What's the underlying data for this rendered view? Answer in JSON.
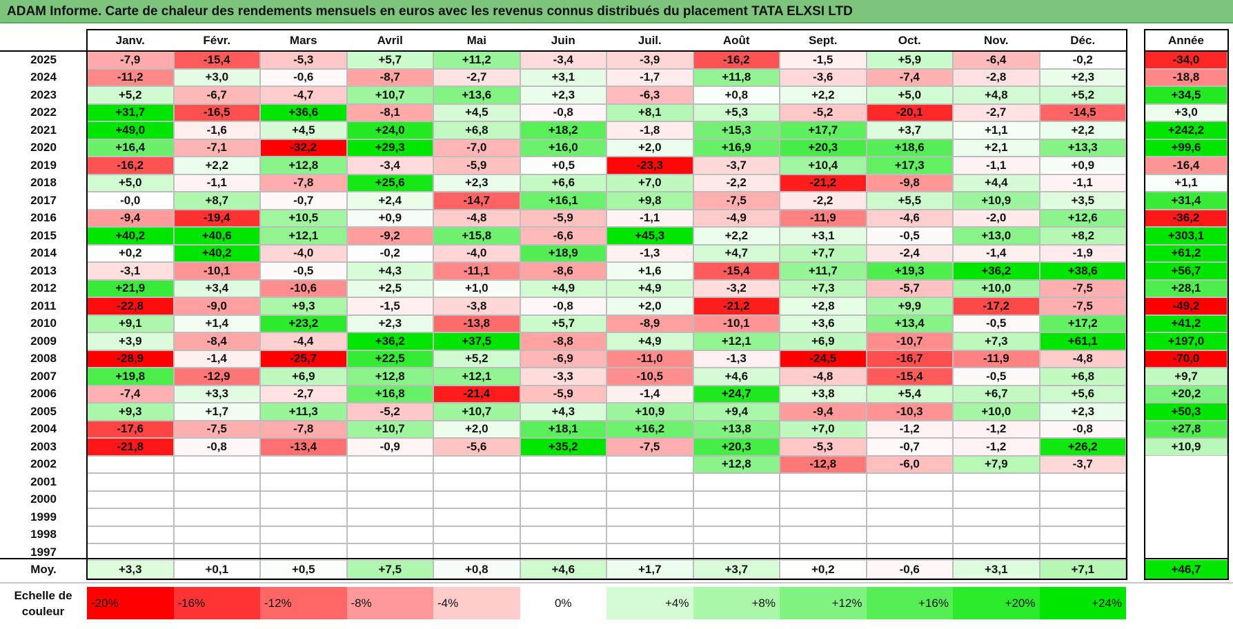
{
  "title": "ADAM Informe. Carte de chaleur des rendements mensuels en euros avec les revenus connus distribués du placement TATA ELXSI LTD",
  "chart_data": {
    "type": "heatmap",
    "title": "ADAM Informe. Carte de chaleur des rendements mensuels en euros avec les revenus connus distribués du placement TATA ELXSI LTD",
    "columns": [
      "Janv.",
      "Févr.",
      "Mars",
      "Avril",
      "Mai",
      "Juin",
      "Juil.",
      "Août",
      "Sept.",
      "Oct.",
      "Nov.",
      "Déc."
    ],
    "year_header": "Année",
    "rows": [
      {
        "year": "2025",
        "values": [
          "-7,9",
          "-15,4",
          "-5,3",
          "+5,7",
          "+11,2",
          "-3,4",
          "-3,9",
          "-16,2",
          "-1,5",
          "+5,9",
          "-6,4",
          "-0,2"
        ],
        "annual": "-34,0"
      },
      {
        "year": "2024",
        "values": [
          "-11,2",
          "+3,0",
          "-0,6",
          "-8,7",
          "-2,7",
          "+3,1",
          "-1,7",
          "+11,8",
          "-3,6",
          "-7,4",
          "-2,8",
          "+2,3"
        ],
        "annual": "-18,8"
      },
      {
        "year": "2023",
        "values": [
          "+5,2",
          "-6,7",
          "-4,7",
          "+10,7",
          "+13,6",
          "+2,3",
          "-6,3",
          "+0,8",
          "+2,2",
          "+5,0",
          "+4,8",
          "+5,2"
        ],
        "annual": "+34,5"
      },
      {
        "year": "2022",
        "values": [
          "+31,7",
          "-16,5",
          "+36,6",
          "-8,1",
          "+4,5",
          "-0,8",
          "+8,1",
          "+5,3",
          "-5,2",
          "-20,1",
          "-2,7",
          "-14,5"
        ],
        "annual": "+3,0"
      },
      {
        "year": "2021",
        "values": [
          "+49,0",
          "-1,6",
          "+4,5",
          "+24,0",
          "+6,8",
          "+18,2",
          "-1,8",
          "+15,3",
          "+17,7",
          "+3,7",
          "+1,1",
          "+2,2"
        ],
        "annual": "+242,2"
      },
      {
        "year": "2020",
        "values": [
          "+16,4",
          "-7,1",
          "-32,2",
          "+29,3",
          "-7,0",
          "+16,0",
          "+2,0",
          "+16,9",
          "+20,3",
          "+18,6",
          "+2,1",
          "+13,3"
        ],
        "annual": "+99,6"
      },
      {
        "year": "2019",
        "values": [
          "-16,2",
          "+2,2",
          "+12,8",
          "-3,4",
          "-5,9",
          "+0,5",
          "-23,3",
          "-3,7",
          "+10,4",
          "+17,3",
          "-1,1",
          "+0,9"
        ],
        "annual": "-16,4"
      },
      {
        "year": "2018",
        "values": [
          "+5,0",
          "-1,1",
          "-7,8",
          "+25,6",
          "+2,3",
          "+6,6",
          "+7,0",
          "-2,2",
          "-21,2",
          "-9,8",
          "+4,4",
          "-1,1"
        ],
        "annual": "+1,1"
      },
      {
        "year": "2017",
        "values": [
          "-0,0",
          "+8,7",
          "-0,7",
          "+2,4",
          "-14,7",
          "+16,1",
          "+9,8",
          "-7,5",
          "-2,2",
          "+5,5",
          "+10,9",
          "+3,5"
        ],
        "annual": "+31,4"
      },
      {
        "year": "2016",
        "values": [
          "-9,4",
          "-19,4",
          "+10,5",
          "+0,9",
          "-4,8",
          "-5,9",
          "-1,1",
          "-4,9",
          "-11,9",
          "-4,6",
          "-2,0",
          "+12,6"
        ],
        "annual": "-36,2"
      },
      {
        "year": "2015",
        "values": [
          "+40,2",
          "+40,6",
          "+12,1",
          "-9,2",
          "+15,8",
          "-6,6",
          "+45,3",
          "+2,2",
          "+3,1",
          "-0,5",
          "+13,0",
          "+8,2"
        ],
        "annual": "+303,1"
      },
      {
        "year": "2014",
        "values": [
          "+0,2",
          "+40,2",
          "-4,0",
          "-0,2",
          "-4,0",
          "+18,9",
          "-1,3",
          "+4,7",
          "+7,7",
          "-2,4",
          "-1,4",
          "-1,9"
        ],
        "annual": "+61,2"
      },
      {
        "year": "2013",
        "values": [
          "-3,1",
          "-10,1",
          "-0,5",
          "+4,3",
          "-11,1",
          "-8,6",
          "+1,6",
          "-15,4",
          "+11,7",
          "+19,3",
          "+36,2",
          "+38,6"
        ],
        "annual": "+56,7"
      },
      {
        "year": "2012",
        "values": [
          "+21,9",
          "+3,4",
          "-10,6",
          "+2,5",
          "+1,0",
          "+4,9",
          "+4,9",
          "-3,2",
          "+7,3",
          "-5,7",
          "+10,0",
          "-7,5"
        ],
        "annual": "+28,1"
      },
      {
        "year": "2011",
        "values": [
          "-22,8",
          "-9,0",
          "+9,3",
          "-1,5",
          "-3,8",
          "-0,8",
          "+2,0",
          "-21,2",
          "+2,8",
          "+9,9",
          "-17,2",
          "-7,5"
        ],
        "annual": "-49,2"
      },
      {
        "year": "2010",
        "values": [
          "+9,1",
          "+1,4",
          "+23,2",
          "+2,3",
          "-13,8",
          "+5,7",
          "-8,9",
          "-10,1",
          "+3,6",
          "+13,4",
          "-0,5",
          "+17,2"
        ],
        "annual": "+41,2"
      },
      {
        "year": "2009",
        "values": [
          "+3,9",
          "-8,4",
          "-4,4",
          "+36,2",
          "+37,5",
          "-8,8",
          "+4,9",
          "+12,1",
          "+6,9",
          "-10,7",
          "+7,3",
          "+61,1"
        ],
        "annual": "+197,0"
      },
      {
        "year": "2008",
        "values": [
          "-28,9",
          "-1,4",
          "-25,7",
          "+22,5",
          "+5,2",
          "-6,9",
          "-11,0",
          "-1,3",
          "-24,5",
          "-16,7",
          "-11,9",
          "-4,8"
        ],
        "annual": "-70,0"
      },
      {
        "year": "2007",
        "values": [
          "+19,8",
          "-12,9",
          "+6,9",
          "+12,8",
          "+12,1",
          "-3,3",
          "-10,5",
          "+4,6",
          "-4,8",
          "-15,4",
          "-0,5",
          "+6,8"
        ],
        "annual": "+9,7"
      },
      {
        "year": "2006",
        "values": [
          "-7,4",
          "+3,3",
          "-2,7",
          "+16,8",
          "-21,4",
          "-5,9",
          "-1,4",
          "+24,7",
          "+3,8",
          "+5,4",
          "+6,7",
          "+5,6"
        ],
        "annual": "+20,2"
      },
      {
        "year": "2005",
        "values": [
          "+9,3",
          "+1,7",
          "+11,3",
          "-5,2",
          "+10,7",
          "+4,3",
          "+10,9",
          "+9,4",
          "-9,4",
          "-10,3",
          "+10,0",
          "+2,3"
        ],
        "annual": "+50,3"
      },
      {
        "year": "2004",
        "values": [
          "-17,6",
          "-7,5",
          "-7,8",
          "+10,7",
          "+2,0",
          "+18,1",
          "+16,2",
          "+13,8",
          "+7,0",
          "-1,2",
          "-1,2",
          "-0,8"
        ],
        "annual": "+27,8"
      },
      {
        "year": "2003",
        "values": [
          "-21,8",
          "-0,8",
          "-13,4",
          "-0,9",
          "-5,6",
          "+35,2",
          "-7,5",
          "+20,3",
          "-5,3",
          "-0,7",
          "-1,2",
          "+26,2"
        ],
        "annual": "+10,9"
      },
      {
        "year": "2002",
        "values": [
          "",
          "",
          "",
          "",
          "",
          "",
          "",
          "+12,8",
          "-12,8",
          "-6,0",
          "+7,9",
          "-3,7"
        ],
        "annual": ""
      },
      {
        "year": "2001",
        "values": [
          "",
          "",
          "",
          "",
          "",
          "",
          "",
          "",
          "",
          "",
          "",
          ""
        ],
        "annual": ""
      },
      {
        "year": "2000",
        "values": [
          "",
          "",
          "",
          "",
          "",
          "",
          "",
          "",
          "",
          "",
          "",
          ""
        ],
        "annual": ""
      },
      {
        "year": "1999",
        "values": [
          "",
          "",
          "",
          "",
          "",
          "",
          "",
          "",
          "",
          "",
          "",
          ""
        ],
        "annual": ""
      },
      {
        "year": "1998",
        "values": [
          "",
          "",
          "",
          "",
          "",
          "",
          "",
          "",
          "",
          "",
          "",
          ""
        ],
        "annual": ""
      },
      {
        "year": "1997",
        "values": [
          "",
          "",
          "",
          "",
          "",
          "",
          "",
          "",
          "",
          "",
          "",
          ""
        ],
        "annual": ""
      }
    ],
    "average": {
      "label": "Moy.",
      "values": [
        "+3,3",
        "+0,1",
        "+0,5",
        "+7,5",
        "+0,8",
        "+4,6",
        "+1,7",
        "+3,7",
        "+0,2",
        "-0,6",
        "+3,1",
        "+7,1"
      ],
      "annual": "+46,7"
    },
    "color_scale": {
      "label": "Echelle de couleur",
      "steps": [
        "-20%",
        "-16%",
        "-12%",
        "-8%",
        "-4%",
        "0%",
        "+4%",
        "+8%",
        "+12%",
        "+16%",
        "+20%",
        "+24%"
      ]
    },
    "colors": {
      "negative_max": "#ff0000",
      "neutral": "#ffffff",
      "positive_max": "#00ee00",
      "title_bar": "#7dc57d"
    }
  }
}
